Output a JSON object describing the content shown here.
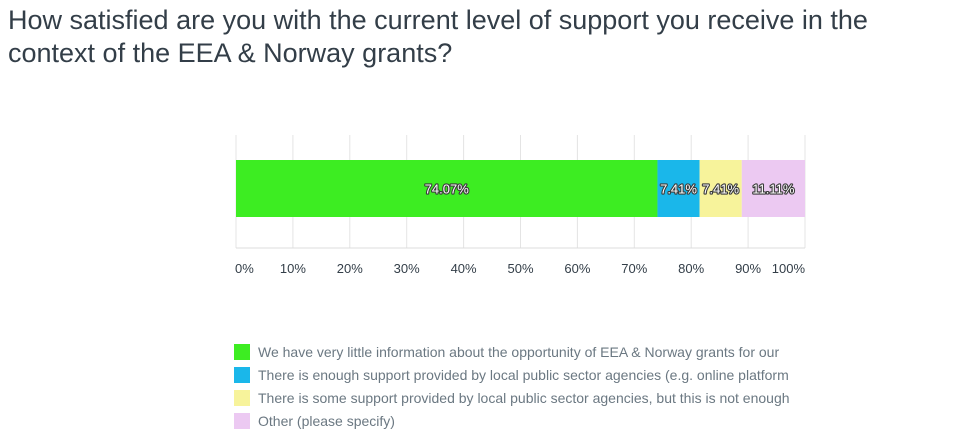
{
  "question": {
    "title": "How satisfied are you with the current level of support you receive in the context of the EEA & Norway grants?"
  },
  "chart_data": {
    "type": "bar",
    "orientation": "horizontal",
    "stacked": true,
    "xlim": [
      0,
      100
    ],
    "x_ticks": [
      "0%",
      "10%",
      "20%",
      "30%",
      "40%",
      "50%",
      "60%",
      "70%",
      "80%",
      "90%",
      "100%"
    ],
    "grid": true,
    "legend_position": "bottom",
    "series": [
      {
        "name": "We have very little information about the opportunity of EEA & Norway grants for our  ",
        "value": 74.07,
        "label": "74.07%",
        "color": "#3ded22"
      },
      {
        "name": "There is enough support provided by local public sector agencies (e.g. online platform",
        "value": 7.41,
        "label": "7.41%",
        "color": "#1ab7ea"
      },
      {
        "name": "There is some support provided by local public sector agencies, but this is not enough",
        "value": 7.41,
        "label": "7.41%",
        "color": "#f7f39b"
      },
      {
        "name": "Other (please specify)",
        "value": 11.11,
        "label": "11.11%",
        "color": "#ecc9f2"
      }
    ]
  }
}
